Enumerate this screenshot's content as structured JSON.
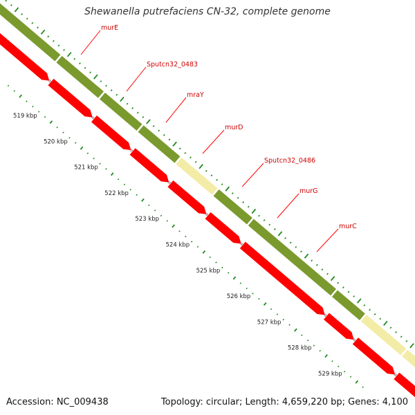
{
  "title": "Shewanella putrefaciens CN-32, complete genome",
  "footer": {
    "accession": "Accession: NC_009438",
    "summary": "Topology: circular; Length: 4,659,220 bp; Genes: 4,100"
  },
  "genes": [
    {
      "label": "murE",
      "feature_color": "#7a9a2e"
    },
    {
      "label": "Sputcn32_0483",
      "feature_color": "#7a9a2e"
    },
    {
      "label": "mraY",
      "feature_color": "#7a9a2e"
    },
    {
      "label": "murD",
      "feature_color": "#7a9a2e"
    },
    {
      "label": "Sputcn32_0486",
      "feature_color": "#f2eca6"
    },
    {
      "label": "murG",
      "feature_color": "#7a9a2e"
    },
    {
      "label": "murC",
      "feature_color": "#7a9a2e"
    }
  ],
  "kbp_ticks": [
    "519 kbp",
    "520 kbp",
    "521 kbp",
    "522 kbp",
    "523 kbp",
    "524 kbp",
    "525 kbp",
    "526 kbp",
    "527 kbp",
    "528 kbp",
    "529 kbp"
  ],
  "colors": {
    "cog_default": "#7a9a2e",
    "cog_unknown": "#f2eca6",
    "cds_arrow": "#ff0000",
    "backbone": "#888888",
    "label_line": "#ff0000",
    "tick": "#1f8a1f"
  }
}
